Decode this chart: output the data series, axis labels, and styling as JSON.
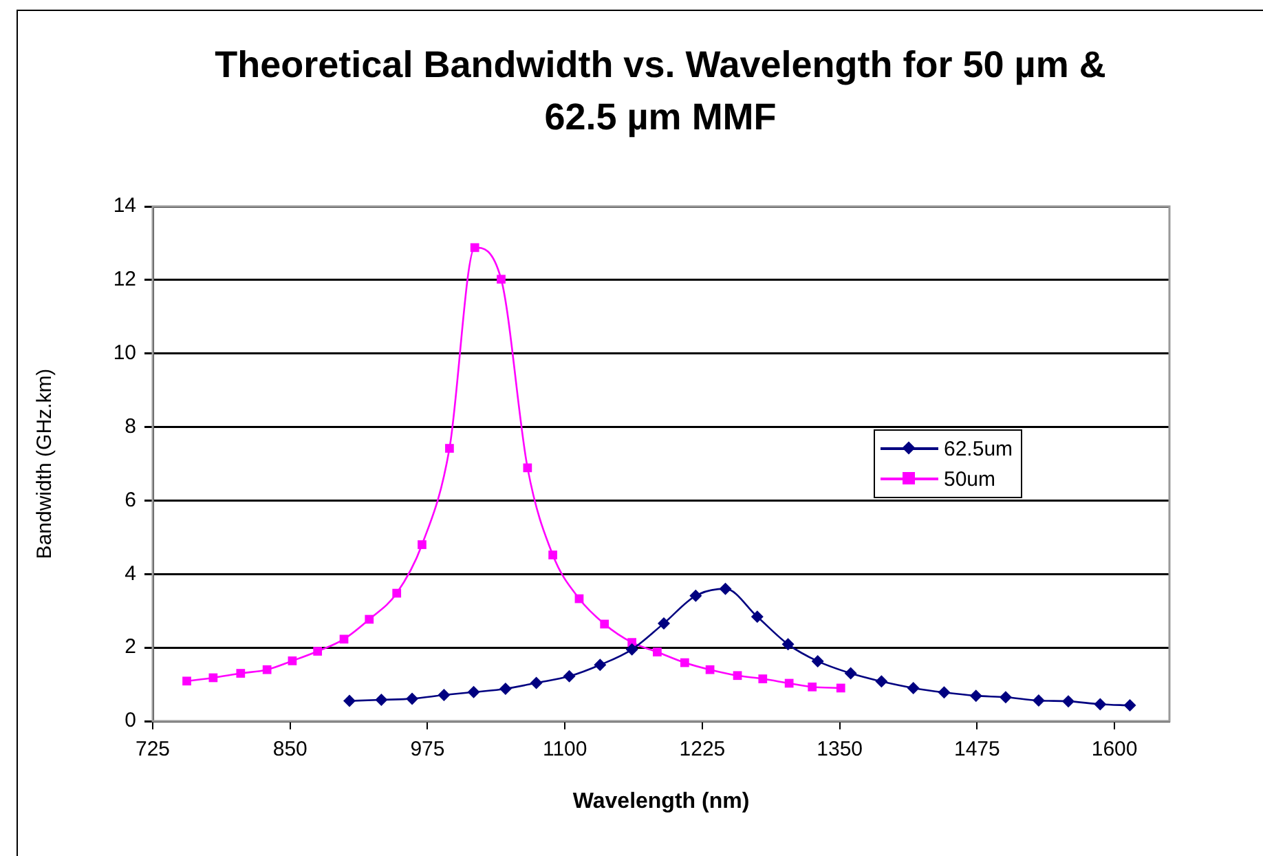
{
  "chart_data": {
    "type": "line",
    "title": "Theoretical Bandwidth vs. Wavelength for 50 µm & 62.5 µm MMF",
    "xlabel": "Wavelength (nm)",
    "ylabel": "Bandwidth (GHz.km)",
    "xlim": [
      725,
      1650
    ],
    "xticks": [
      725,
      850,
      975,
      1100,
      1225,
      1350,
      1475,
      1600
    ],
    "ylim": [
      0,
      14
    ],
    "yticks": [
      0,
      2,
      4,
      6,
      8,
      10,
      12,
      14
    ],
    "grid": "y",
    "legend": "right",
    "line_style": "solid",
    "series": [
      {
        "name": "62.5um",
        "color": "#000080",
        "marker": "diamond",
        "x": [
          904,
          933,
          961,
          990,
          1017,
          1046,
          1074,
          1104,
          1132,
          1161,
          1190,
          1219,
          1246,
          1275,
          1303,
          1330,
          1360,
          1388,
          1417,
          1445,
          1474,
          1501,
          1531,
          1558,
          1587,
          1614
        ],
        "values": [
          0.55,
          0.58,
          0.61,
          0.71,
          0.79,
          0.88,
          1.04,
          1.22,
          1.53,
          1.95,
          2.66,
          3.41,
          3.6,
          2.84,
          2.09,
          1.63,
          1.3,
          1.08,
          0.9,
          0.78,
          0.69,
          0.65,
          0.56,
          0.54,
          0.46,
          0.43
        ]
      },
      {
        "name": "50um",
        "color": "#ff00ff",
        "marker": "square",
        "x": [
          756,
          780,
          805,
          829,
          852,
          875,
          899,
          922,
          947,
          970,
          995,
          1018,
          1042,
          1066,
          1089,
          1113,
          1136,
          1161,
          1184,
          1209,
          1232,
          1257,
          1280,
          1304,
          1325,
          1351
        ],
        "values": [
          1.09,
          1.18,
          1.3,
          1.4,
          1.64,
          1.9,
          2.23,
          2.77,
          3.48,
          4.8,
          7.42,
          12.88,
          12.02,
          6.89,
          4.52,
          3.33,
          2.64,
          2.14,
          1.88,
          1.59,
          1.4,
          1.24,
          1.15,
          1.03,
          0.93,
          0.9
        ]
      }
    ]
  }
}
